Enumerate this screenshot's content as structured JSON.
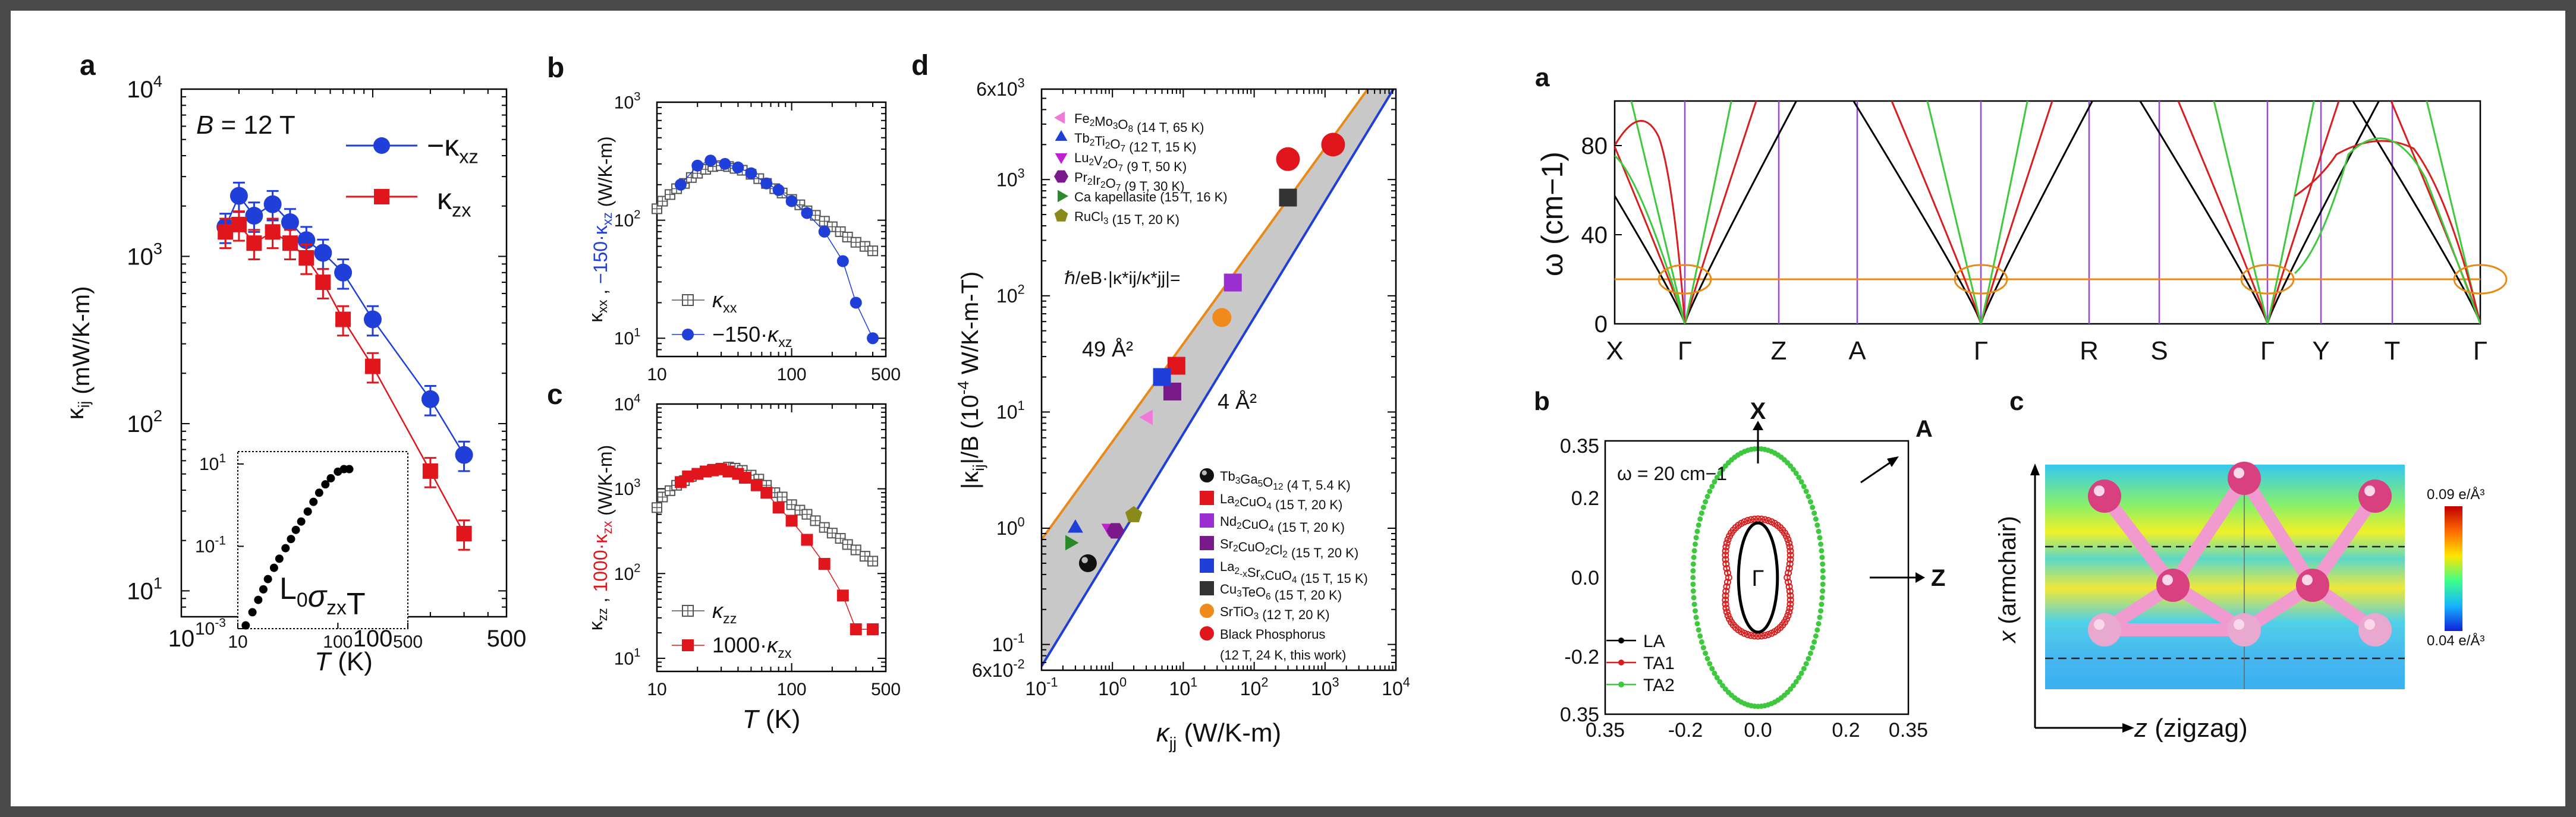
{
  "chart_data": [
    {
      "type": "scatter",
      "panel": "a",
      "annotation": "B = 12 T",
      "xlabel": "T (K)",
      "ylabel": "κij (mW/K-m)",
      "xscale": "log",
      "yscale": "log",
      "xlim": [
        10,
        500
      ],
      "ylim": [
        7,
        10000
      ],
      "xticks": [
        "10",
        "100",
        "500"
      ],
      "yticks": [
        "10^1",
        "10^2",
        "10^3",
        "10^4"
      ],
      "legend_placement": "top-right",
      "series": [
        {
          "name": "−κxz",
          "color": "#1f3fd8",
          "x": [
            17,
            20,
            24,
            30,
            37,
            45,
            55,
            70,
            100,
            200,
            300
          ],
          "y": [
            1500,
            2300,
            1750,
            2050,
            1600,
            1250,
            1050,
            800,
            420,
            140,
            65
          ]
        },
        {
          "name": "κzx",
          "color": "#e0161c",
          "x": [
            17,
            20,
            24,
            30,
            37,
            45,
            55,
            70,
            100,
            200,
            300
          ],
          "y": [
            1400,
            1550,
            1200,
            1400,
            1200,
            980,
            700,
            420,
            220,
            52,
            22
          ]
        }
      ],
      "inset": {
        "label": "L0σzxT",
        "xscale": "log",
        "yscale": "log",
        "xlim": [
          10,
          500
        ],
        "ylim": [
          0.001,
          20
        ],
        "xticks": [
          "10",
          "100",
          "500"
        ],
        "yticks": [
          "10^-3",
          "10^-1",
          "10^1"
        ],
        "x": [
          12,
          14,
          16,
          18,
          20,
          23,
          26,
          30,
          34,
          38,
          43,
          50,
          57,
          65,
          75,
          85,
          100,
          115,
          130
        ],
        "y": [
          0.0012,
          0.0025,
          0.005,
          0.009,
          0.016,
          0.03,
          0.05,
          0.09,
          0.15,
          0.25,
          0.4,
          0.7,
          1.2,
          2,
          3.2,
          4.5,
          6.5,
          7.5,
          7.5
        ]
      }
    },
    {
      "type": "scatter",
      "panel": "b",
      "ylabel": "κxx , −150·κxz (W/K-m)",
      "xscale": "log",
      "yscale": "log",
      "xlim": [
        10,
        500
      ],
      "ylim": [
        7,
        1000
      ],
      "xticks": [
        "10",
        "100",
        "500"
      ],
      "yticks": [
        "10^1",
        "10^2",
        "10^3"
      ],
      "legend_placement": "bottom-left",
      "series": [
        {
          "name": "κxx",
          "color": "#555555",
          "x": [
            10,
            11,
            12.5,
            14,
            16,
            18,
            20,
            23,
            26,
            30,
            34,
            38,
            43,
            50,
            57,
            65,
            75,
            85,
            100,
            115,
            130,
            150,
            175,
            200,
            230,
            260,
            300,
            350,
            400
          ],
          "y": [
            125,
            145,
            165,
            185,
            205,
            230,
            250,
            270,
            285,
            290,
            285,
            275,
            265,
            245,
            225,
            205,
            185,
            170,
            150,
            135,
            120,
            110,
            98,
            88,
            80,
            72,
            65,
            60,
            55
          ]
        },
        {
          "name": "−150·κxz",
          "color": "#1f3fd8",
          "x": [
            15,
            20,
            25,
            32,
            40,
            50,
            65,
            80,
            100,
            130,
            175,
            240,
            300,
            400
          ],
          "y": [
            200,
            290,
            320,
            300,
            280,
            250,
            205,
            180,
            145,
            115,
            80,
            45,
            20,
            10
          ]
        }
      ]
    },
    {
      "type": "scatter",
      "panel": "c",
      "xlabel": "T (K)",
      "ylabel": "κzz , 1000·κzx (W/K-m)",
      "xscale": "log",
      "yscale": "log",
      "xlim": [
        10,
        500
      ],
      "ylim": [
        7,
        10000
      ],
      "xticks": [
        "10",
        "100",
        "500"
      ],
      "yticks": [
        "10^1",
        "10^2",
        "10^3",
        "10^4"
      ],
      "legend_placement": "bottom-left",
      "series": [
        {
          "name": "κzz",
          "color": "#555555",
          "x": [
            10,
            11,
            12.5,
            14,
            16,
            18,
            20,
            23,
            26,
            30,
            34,
            38,
            43,
            50,
            57,
            65,
            75,
            85,
            100,
            115,
            130,
            150,
            175,
            200,
            230,
            260,
            300,
            350,
            400
          ],
          "y": [
            600,
            800,
            950,
            1100,
            1250,
            1400,
            1500,
            1600,
            1700,
            1750,
            1800,
            1750,
            1650,
            1450,
            1300,
            1100,
            900,
            800,
            650,
            560,
            500,
            420,
            350,
            300,
            260,
            220,
            190,
            160,
            140
          ]
        },
        {
          "name": "1000·κzx",
          "color": "#e0161c",
          "x": [
            15,
            17,
            20,
            23,
            26,
            30,
            34,
            40,
            45,
            55,
            65,
            80,
            100,
            130,
            175,
            240,
            300,
            400
          ],
          "y": [
            1200,
            1400,
            1500,
            1600,
            1650,
            1700,
            1600,
            1500,
            1350,
            1100,
            900,
            600,
            420,
            250,
            130,
            55,
            22,
            22
          ]
        }
      ]
    },
    {
      "type": "scatter",
      "panel": "d",
      "xlabel": "κ*jj (W/K-m)",
      "ylabel": "|κij|/B (10^-4 W/K-m-T)",
      "xscale": "log",
      "yscale": "log",
      "xlim": [
        0.1,
        10000
      ],
      "ylim": [
        0.06,
        6000
      ],
      "xticks": [
        "10^-1",
        "10^0",
        "10^1",
        "10^2",
        "10^3",
        "10^4"
      ],
      "yticks": [
        "6x10^-2",
        "10^-1",
        "10^0",
        "10^1",
        "10^2",
        "10^3",
        "6x10^3"
      ],
      "formula": "ℏ/eB·|κ*ij/κ*jj|=",
      "bands": [
        {
          "label": "49 Å²",
          "color": "#e88a17",
          "x": [
            0.1,
            4000
          ],
          "y": [
            0.8,
            6000
          ]
        },
        {
          "label": "4 Å²",
          "color": "#1f3fd8",
          "x": [
            0.1,
            10000
          ],
          "y": [
            0.065,
            6500
          ]
        }
      ],
      "series": [
        {
          "name": "Fe2Mo3O8 (14 T, 65 K)",
          "color": "#f07ad8",
          "marker": "triangle-left",
          "x": [
            3.2
          ],
          "y": [
            9
          ]
        },
        {
          "name": "Tb2Ti2O7 (12 T, 15 K)",
          "color": "#1f3fd8",
          "marker": "triangle-up",
          "x": [
            0.3
          ],
          "y": [
            1.0
          ]
        },
        {
          "name": "Lu2V2O7 (9 T, 50 K)",
          "color": "#c020d0",
          "marker": "triangle-down",
          "x": [
            0.9
          ],
          "y": [
            1.0
          ]
        },
        {
          "name": "Pr2Ir2O7 (9 T, 30 K)",
          "color": "#7a1a8a",
          "marker": "hexagon",
          "x": [
            1.1
          ],
          "y": [
            0.95
          ]
        },
        {
          "name": "Ca kapellasite (15 T, 16 K)",
          "color": "#2a8a2a",
          "marker": "triangle-right",
          "x": [
            0.25
          ],
          "y": [
            0.75
          ]
        },
        {
          "name": "RuCl3 (15 T, 20 K)",
          "color": "#8a8a1a",
          "marker": "pentagon",
          "x": [
            2.0
          ],
          "y": [
            1.3
          ]
        },
        {
          "name": "Tb3Ga5O12 (4 T, 5.4 K)",
          "color": "#111111",
          "marker": "sphere",
          "x": [
            0.45
          ],
          "y": [
            0.5
          ]
        },
        {
          "name": "La2CuO4 (15 T, 20 K)",
          "color": "#e0161c",
          "marker": "square",
          "x": [
            8
          ],
          "y": [
            25
          ]
        },
        {
          "name": "Nd2CuO4 (15 T, 20 K)",
          "color": "#9a2ed0",
          "marker": "square",
          "x": [
            50
          ],
          "y": [
            130
          ]
        },
        {
          "name": "Sr2CuO2Cl2 (15 T, 20 K)",
          "color": "#7a1a8a",
          "marker": "square",
          "x": [
            7
          ],
          "y": [
            15
          ]
        },
        {
          "name": "La2-xSrxCuO4 (15 T, 15 K)",
          "color": "#1f3fd8",
          "marker": "square",
          "x": [
            5
          ],
          "y": [
            20
          ]
        },
        {
          "name": "Cu3TeO6 (15 T, 20 K)",
          "color": "#333333",
          "marker": "square",
          "x": [
            300
          ],
          "y": [
            700
          ]
        },
        {
          "name": "SrTiO3 (12 T, 20 K)",
          "color": "#f08a1a",
          "marker": "circle",
          "x": [
            35
          ],
          "y": [
            65
          ]
        },
        {
          "name": "Black Phosphorus (12 T, 24 K, this work)",
          "color": "#e0161c",
          "marker": "circle-large",
          "x": [
            300,
            1300
          ],
          "y": [
            1500,
            2000
          ]
        }
      ]
    },
    {
      "type": "line",
      "panel": "a",
      "ylabel": "ω (cm−1)",
      "ylim": [
        0,
        100
      ],
      "yticks": [
        "0",
        "40",
        "80"
      ],
      "xticks": [
        "X",
        "Γ",
        "Z",
        "A",
        "Γ",
        "R",
        "S",
        "Γ",
        "Y",
        "T",
        "Γ"
      ],
      "reference_line": {
        "label": "ω = 20 cm−1",
        "y": 20,
        "color": "#e88a17"
      },
      "series": [
        {
          "name": "LA",
          "color": "#000000"
        },
        {
          "name": "TA1",
          "color": "#d81e1e"
        },
        {
          "name": "TA2",
          "color": "#3ec83e"
        }
      ]
    },
    {
      "type": "line",
      "panel": "b",
      "annotation": "ω = 20 cm−1",
      "xlim": [
        -0.35,
        0.35
      ],
      "ylim": [
        -0.35,
        0.35
      ],
      "xticks": [
        "0.35",
        "-0.2",
        "0.0",
        "0.2",
        "0.35"
      ],
      "yticks": [
        "0.35",
        "0.2",
        "0.0",
        "-0.2",
        "0.35"
      ],
      "axis_labels": [
        "X",
        "Z",
        "A",
        "Γ"
      ],
      "legend_placement": "bottom-left",
      "series": [
        {
          "name": "LA",
          "color": "#000000",
          "rx": 0.045,
          "ry": 0.14
        },
        {
          "name": "TA1",
          "color": "#d81e1e",
          "rx": 0.09,
          "ry": 0.15
        },
        {
          "name": "TA2",
          "color": "#3ec83e",
          "rx": 0.15,
          "ry": 0.33
        }
      ]
    },
    {
      "type": "heatmap",
      "panel": "c",
      "xlabel": "z (zigzag)",
      "ylabel": "x (armchair)",
      "colorbar": {
        "max_label": "0.09 e/Å³",
        "min_label": "0.04 e/Å³"
      }
    }
  ],
  "panel_labels": [
    "a",
    "b",
    "c",
    "d",
    "a",
    "b",
    "c"
  ]
}
